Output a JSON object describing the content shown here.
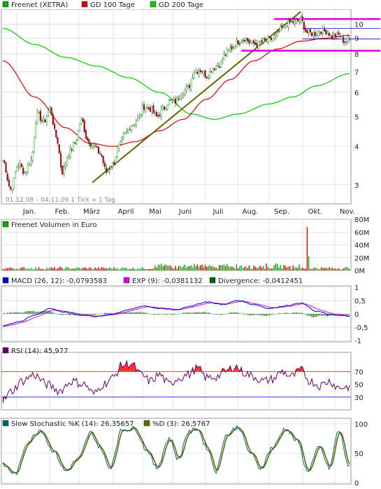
{
  "colors": {
    "price_up": "#00aa00",
    "price_down": "#dd0000",
    "gd100": "#dd0000",
    "gd200": "#00cc00",
    "trendline": "#666600",
    "channel": "#dd00dd",
    "macd": "#0000cc",
    "exp": "#dd00dd",
    "divergence": "#006600",
    "rsi": "#660066",
    "rsi_fill_hi": "#ff3333",
    "rsi_fill_lo": "#3333ff",
    "stoch_k": "#006666",
    "stoch_d": "#666600",
    "grid": "#cccccc",
    "frame": "#999999"
  },
  "chart_data": {
    "type": "line",
    "months": [
      "Jan.",
      "Feb.",
      "März",
      "April",
      "Mai",
      "Juni",
      "Juli",
      "Aug.",
      "Sep.",
      "Okt.",
      "Nov."
    ],
    "panels": {
      "price": {
        "legend": [
          {
            "name": "Freenet (XETRA)",
            "color_key": "price_down"
          },
          {
            "name": "GD 100 Tage",
            "color_key": "gd100"
          },
          {
            "name": "GD 200 Tage",
            "color_key": "gd200"
          }
        ],
        "info": "01.12.08 – 04.11.09   1 Tick = 1 Tag",
        "yscale": "log",
        "ylim": [
          2.6,
          11.2
        ],
        "ticks": [
          "3",
          "4",
          "5",
          "6",
          "7",
          "8",
          "9",
          "10"
        ],
        "anchors": [
          [
            0,
            3.6
          ],
          [
            5,
            2.9
          ],
          [
            10,
            3.5
          ],
          [
            14,
            3.3
          ],
          [
            18,
            3.6
          ],
          [
            22,
            5.1
          ],
          [
            26,
            4.8
          ],
          [
            30,
            5.3
          ],
          [
            34,
            4.3
          ],
          [
            38,
            3.3
          ],
          [
            42,
            3.8
          ],
          [
            46,
            4.1
          ],
          [
            50,
            4.9
          ],
          [
            54,
            4.2
          ],
          [
            58,
            4.0
          ],
          [
            62,
            3.8
          ],
          [
            66,
            3.3
          ],
          [
            70,
            3.5
          ],
          [
            74,
            4.0
          ],
          [
            78,
            4.4
          ],
          [
            82,
            4.7
          ],
          [
            86,
            4.9
          ],
          [
            90,
            5.4
          ],
          [
            94,
            5.3
          ],
          [
            98,
            5.0
          ],
          [
            102,
            5.3
          ],
          [
            106,
            5.6
          ],
          [
            110,
            5.6
          ],
          [
            114,
            6.0
          ],
          [
            118,
            6.2
          ],
          [
            122,
            7.0
          ],
          [
            126,
            7.1
          ],
          [
            130,
            6.8
          ],
          [
            134,
            7.2
          ],
          [
            138,
            7.4
          ],
          [
            142,
            8.0
          ],
          [
            146,
            8.4
          ],
          [
            150,
            8.8
          ],
          [
            154,
            9.0
          ],
          [
            158,
            8.7
          ],
          [
            162,
            8.6
          ],
          [
            166,
            8.8
          ],
          [
            170,
            8.9
          ],
          [
            174,
            9.1
          ],
          [
            178,
            9.7
          ],
          [
            182,
            10.1
          ],
          [
            186,
            10.2
          ],
          [
            190,
            10.3
          ],
          [
            194,
            9.4
          ],
          [
            198,
            9.3
          ],
          [
            202,
            9.5
          ],
          [
            206,
            9.5
          ],
          [
            210,
            9.1
          ],
          [
            214,
            9.2
          ],
          [
            218,
            8.8
          ],
          [
            221,
            8.9
          ]
        ],
        "gd100_anchors": [
          [
            0,
            7.6
          ],
          [
            20,
            5.8
          ],
          [
            40,
            4.6
          ],
          [
            55,
            4.1
          ],
          [
            70,
            4.0
          ],
          [
            85,
            4.15
          ],
          [
            100,
            4.5
          ],
          [
            115,
            4.9
          ],
          [
            130,
            5.7
          ],
          [
            145,
            6.6
          ],
          [
            160,
            7.6
          ],
          [
            175,
            8.3
          ],
          [
            190,
            8.8
          ],
          [
            205,
            9.0
          ],
          [
            221,
            9.2
          ]
        ],
        "gd200_anchors": [
          [
            0,
            9.7
          ],
          [
            20,
            8.6
          ],
          [
            40,
            7.8
          ],
          [
            60,
            7.3
          ],
          [
            80,
            6.7
          ],
          [
            100,
            6.0
          ],
          [
            120,
            5.1
          ],
          [
            135,
            4.9
          ],
          [
            150,
            5.1
          ],
          [
            170,
            5.5
          ],
          [
            185,
            5.8
          ],
          [
            200,
            6.3
          ],
          [
            221,
            6.9
          ]
        ],
        "trendline": [
          [
            57,
            3.05
          ],
          [
            190,
            11.0
          ]
        ],
        "channel": [
          {
            "x1": 173,
            "x2": 222,
            "y": 10.4
          },
          {
            "x1": 152,
            "x2": 222,
            "y": 8.2
          }
        ],
        "resistance": [
          {
            "x1": 191,
            "x2": 222,
            "y": 9.7
          },
          {
            "x1": 191,
            "x2": 222,
            "y": 8.95
          }
        ]
      },
      "volume": {
        "legend": [
          {
            "name": "Freenet Volumen in Euro"
          }
        ],
        "ylim": [
          0,
          80
        ],
        "ticks": [
          "0M",
          "20M",
          "40M",
          "60M",
          "80M"
        ],
        "spike": {
          "x": 194,
          "value": 68
        }
      },
      "macd": {
        "legend": [
          {
            "name": "MACD (26, 12): -0,0793583",
            "color_key": "macd"
          },
          {
            "name": "EXP (9): -0,0381132",
            "color_key": "exp"
          },
          {
            "name": "Divergence: -0,0412451",
            "color_key": "divergence"
          }
        ],
        "ylim": [
          -1.05,
          1.05
        ],
        "ticks": [
          "1",
          "0,5",
          "0",
          "-0,5",
          "-1"
        ]
      },
      "rsi": {
        "legend": [
          {
            "name": "RSI (14): 45,977",
            "color_key": "rsi"
          }
        ],
        "ylim": [
          10,
          100
        ],
        "ticks": [
          "70",
          "50",
          "30"
        ],
        "levels": [
          70,
          30
        ]
      },
      "stochastic": {
        "legend": [
          {
            "name": "Slow Stochastic %K (14): 26,35657",
            "color_key": "stoch_k"
          },
          {
            "name": "%D (3): 26,5767",
            "color_key": "stoch_d"
          }
        ],
        "ylim": [
          0,
          100
        ],
        "ticks": [
          "100",
          "50",
          "0"
        ]
      }
    }
  }
}
